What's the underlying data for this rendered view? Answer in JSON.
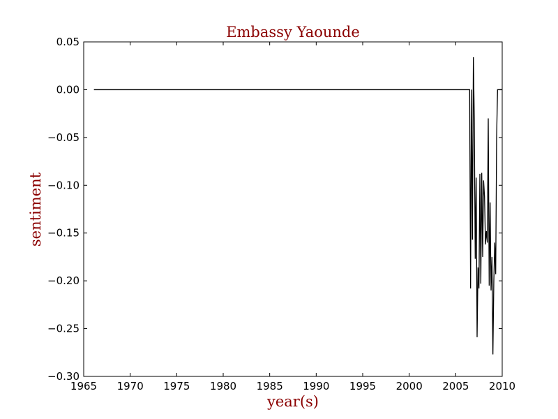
{
  "chart_data": {
    "type": "line",
    "title": "Embassy Yaounde",
    "xlabel": "year(s)",
    "ylabel": "sentiment",
    "xlim": [
      1965,
      2010
    ],
    "ylim": [
      -0.3,
      0.05
    ],
    "grid": false,
    "legend": "none",
    "colors": {
      "label": "#8b0000",
      "line": "#000000",
      "background": "#ffffff"
    },
    "xticks": [
      {
        "value": 1965,
        "label": "1965"
      },
      {
        "value": 1970,
        "label": "1970"
      },
      {
        "value": 1975,
        "label": "1975"
      },
      {
        "value": 1980,
        "label": "1980"
      },
      {
        "value": 1985,
        "label": "1985"
      },
      {
        "value": 1990,
        "label": "1990"
      },
      {
        "value": 1995,
        "label": "1995"
      },
      {
        "value": 2000,
        "label": "2000"
      },
      {
        "value": 2005,
        "label": "2005"
      },
      {
        "value": 2010,
        "label": "2010"
      }
    ],
    "yticks": [
      {
        "value": 0.05,
        "label": "0.05"
      },
      {
        "value": 0.0,
        "label": "0.00"
      },
      {
        "value": -0.05,
        "label": "−0.05"
      },
      {
        "value": -0.1,
        "label": "−0.10"
      },
      {
        "value": -0.15,
        "label": "−0.15"
      },
      {
        "value": -0.2,
        "label": "−0.20"
      },
      {
        "value": -0.25,
        "label": "−0.25"
      },
      {
        "value": -0.3,
        "label": "−0.30"
      }
    ],
    "series": [
      {
        "x": [
          1966.1,
          2006.5,
          2006.6,
          2006.7,
          2006.8,
          2006.9,
          2007.0,
          2007.1,
          2007.2,
          2007.3,
          2007.4,
          2007.5,
          2007.6,
          2007.7,
          2007.8,
          2007.9,
          2008.0,
          2008.1,
          2008.2,
          2008.3,
          2008.4,
          2008.5,
          2008.6,
          2008.7,
          2008.8,
          2008.9,
          2009.0,
          2009.1,
          2009.2,
          2009.3,
          2009.4,
          2009.5,
          2009.6,
          2009.7,
          2009.8,
          2009.9,
          2010.0
        ],
        "y": [
          0.0,
          0.0,
          -0.208,
          0.0,
          -0.157,
          0.034,
          -0.03,
          -0.177,
          -0.092,
          -0.259,
          -0.186,
          -0.208,
          -0.088,
          -0.203,
          -0.087,
          -0.175,
          -0.095,
          -0.112,
          -0.162,
          -0.148,
          -0.16,
          -0.03,
          -0.205,
          -0.118,
          -0.21,
          -0.175,
          -0.277,
          -0.2,
          -0.16,
          -0.193,
          -0.05,
          0.0,
          0.0,
          0.0,
          0.0,
          0.0,
          0.0
        ]
      }
    ]
  }
}
